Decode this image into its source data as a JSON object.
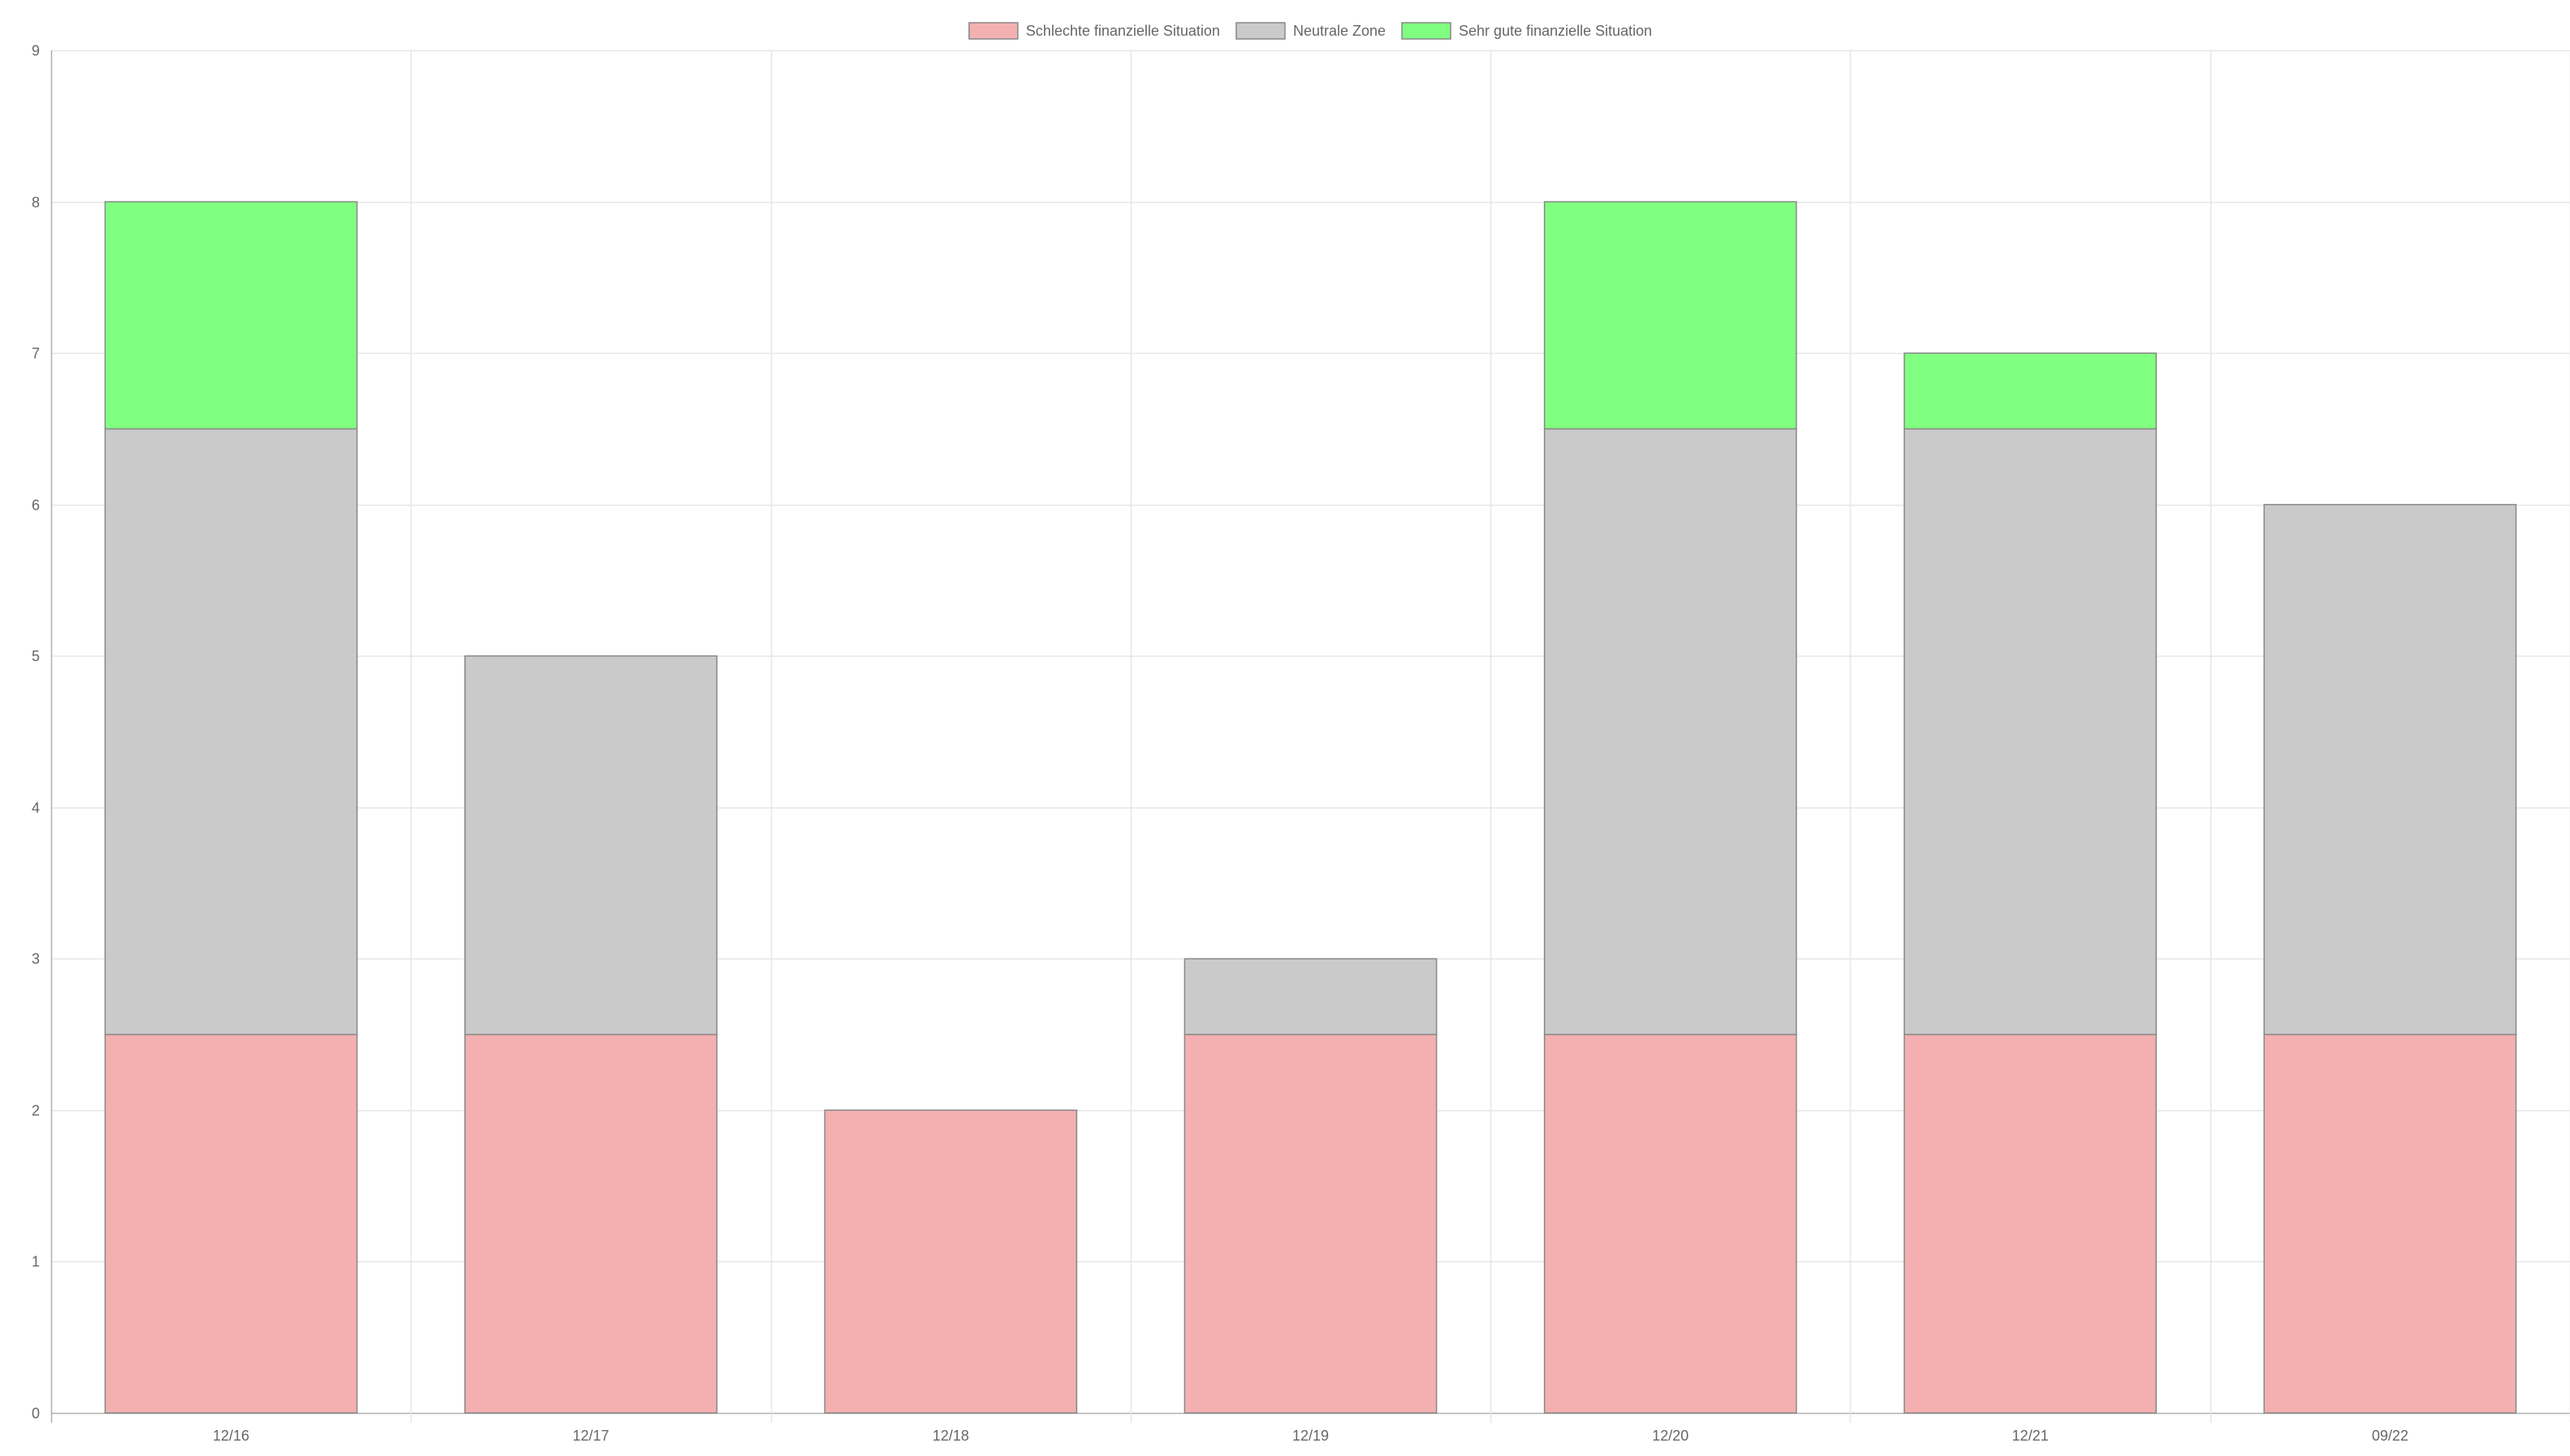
{
  "chart_data": {
    "type": "bar",
    "stacked": true,
    "title": "",
    "xlabel": "",
    "ylabel": "",
    "categories": [
      "12/16",
      "12/17",
      "12/18",
      "12/19",
      "12/20",
      "12/21",
      "09/22"
    ],
    "series": [
      {
        "name": "Schlechte finanzielle Situation",
        "color": "#f4b0b0",
        "values": [
          2.5,
          2.5,
          2,
          2.5,
          2.5,
          2.5,
          2.5
        ]
      },
      {
        "name": "Neutrale Zone",
        "color": "#cacaca",
        "values": [
          4,
          2.5,
          0,
          0.5,
          4,
          4,
          3.5
        ]
      },
      {
        "name": "Sehr gute finanzielle Situation",
        "color": "#80ff80",
        "values": [
          1.5,
          0,
          0,
          0,
          1.5,
          0.5,
          0
        ]
      }
    ],
    "ylim": [
      0,
      9
    ],
    "yticks": [
      0,
      1,
      2,
      3,
      4,
      5,
      6,
      7,
      8,
      9
    ],
    "grid": true,
    "legend_position": "top-center",
    "bar_border_color": "#888888",
    "grid_color": "#e6e6e6",
    "axis_color": "#b0b0b0"
  }
}
